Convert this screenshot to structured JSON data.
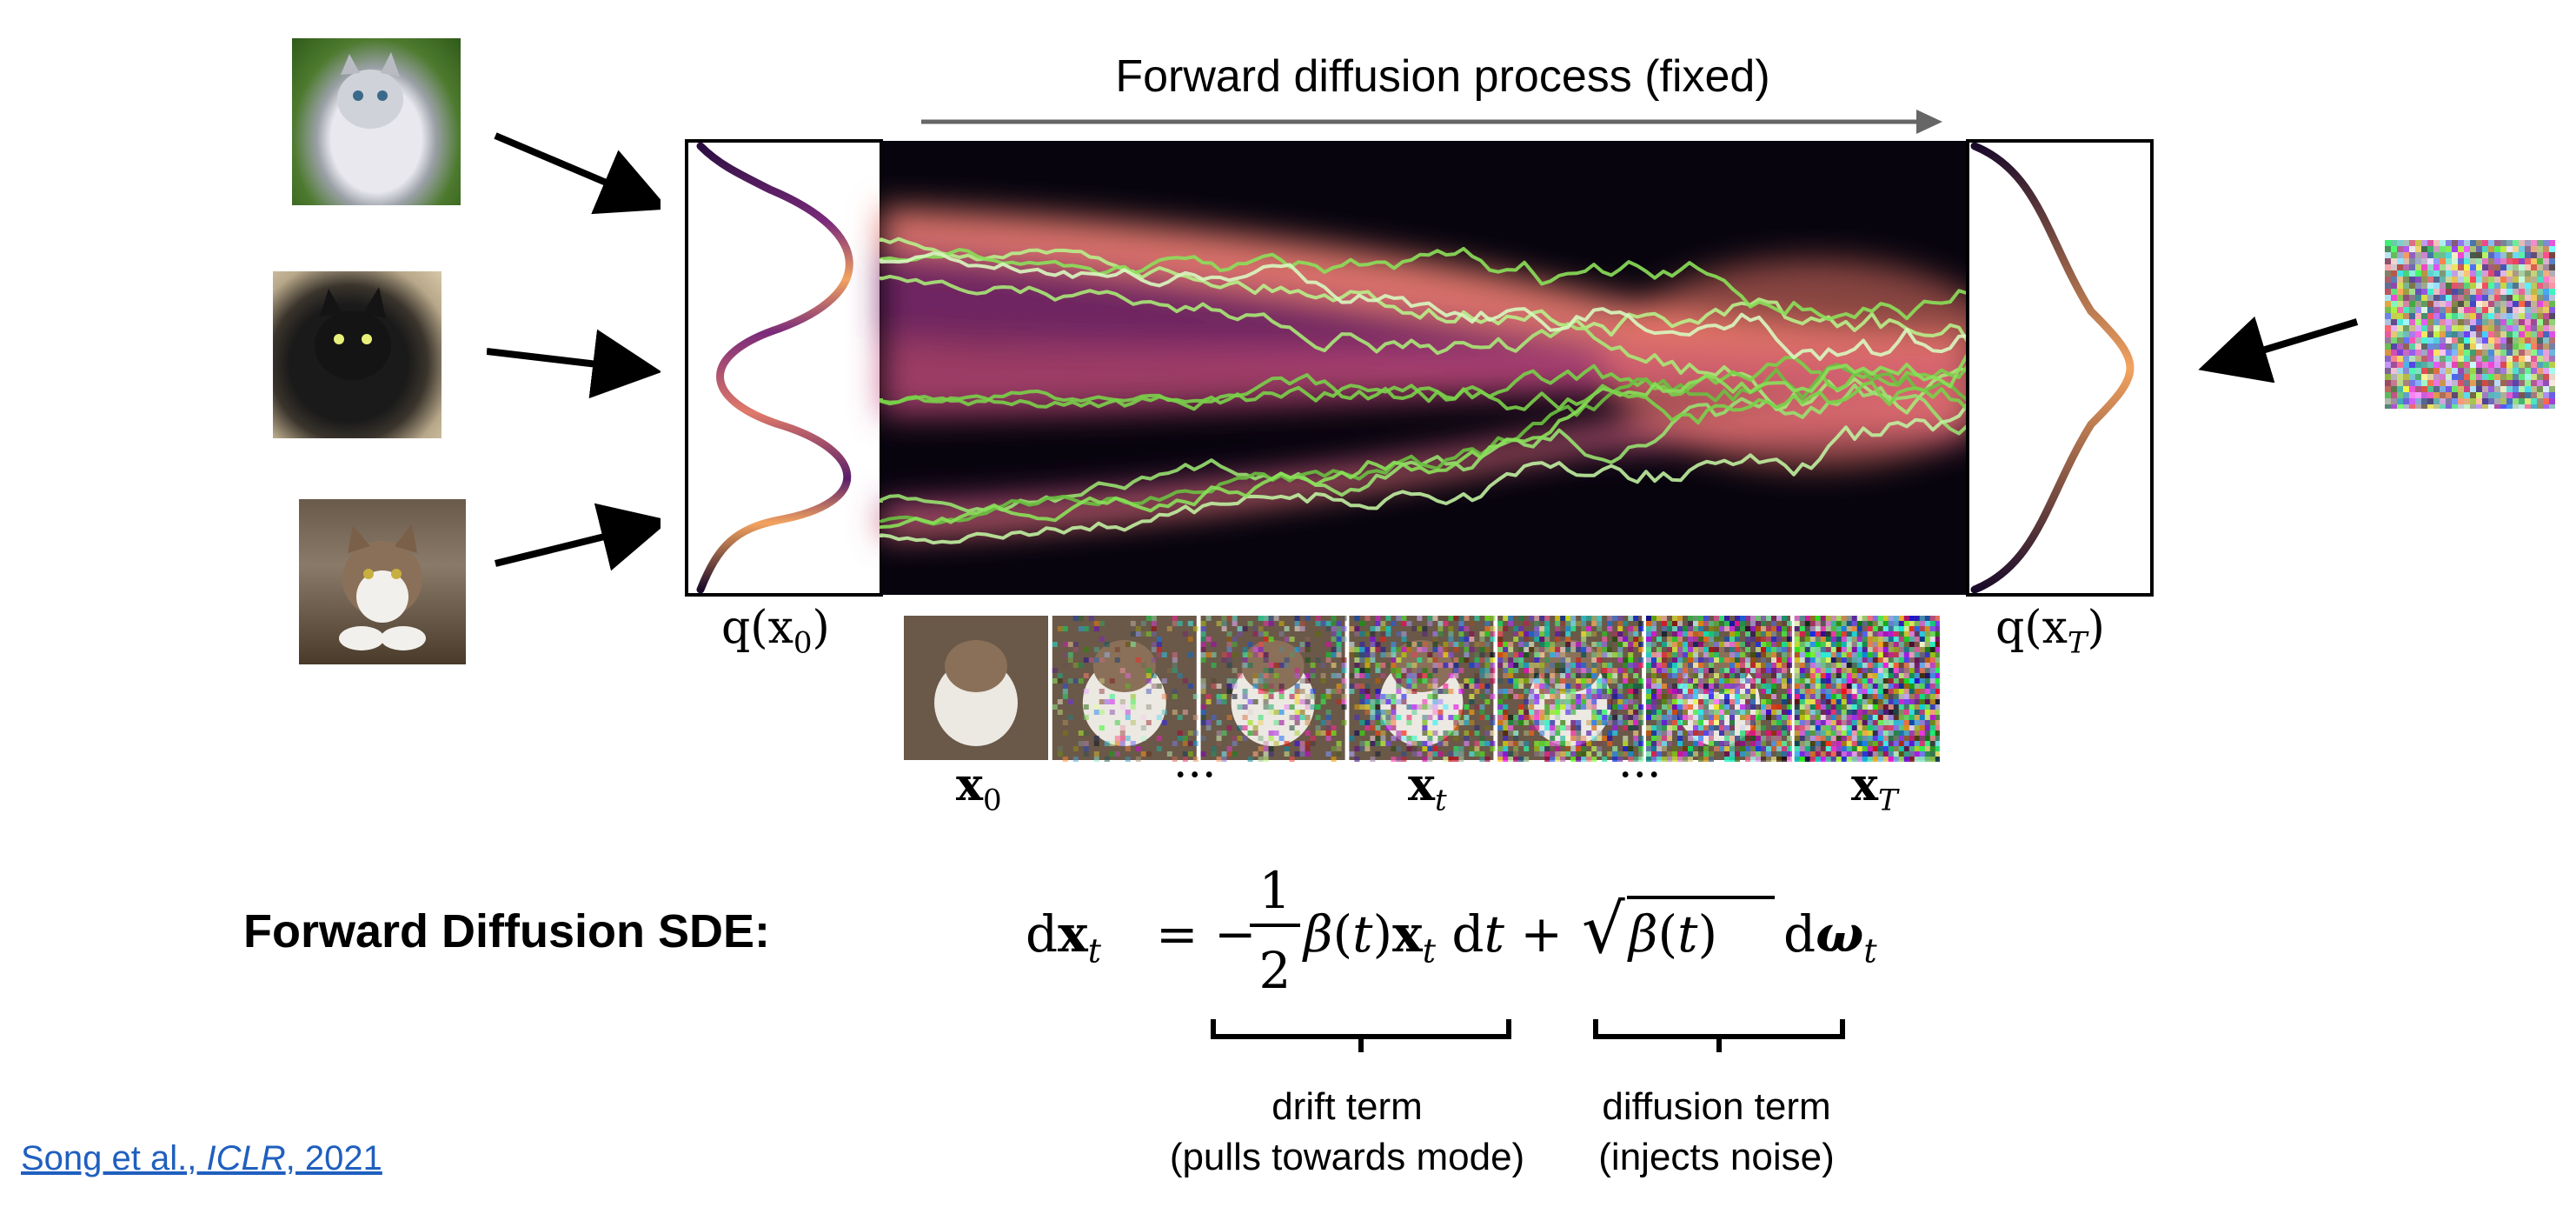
{
  "title": "Forward diffusion process (fixed)",
  "q_x0_label": "q(x₀)",
  "q_xT_label": "q(xₜ)",
  "q_xT_display": "q(x",
  "q_xT_sub": "T",
  "q_x0_display": "q(x",
  "q_x0_sub": "0",
  "timeline": [
    {
      "main": "x",
      "sub": "0"
    },
    {
      "main": "···",
      "sub": ""
    },
    {
      "main": "x",
      "sub": "t"
    },
    {
      "main": "···",
      "sub": ""
    },
    {
      "main": "x",
      "sub": "T"
    }
  ],
  "sde_label": "Forward Diffusion SDE:",
  "equation": {
    "lhs": "dx",
    "lhs_sub": "t",
    "equals": "= −",
    "frac_num": "1",
    "frac_den": "2",
    "drift": "β(t)x",
    "drift_sub": "t",
    "dt": " dt +",
    "sqrt_content": "β(t)",
    "dw": " dω",
    "dw_sub": "t"
  },
  "drift_term": {
    "line1": "drift term",
    "line2": "(pulls towards mode)"
  },
  "diffusion_term": {
    "line1": "diffusion term",
    "line2": "(injects noise)"
  },
  "reference": {
    "authors": "Song et al., ",
    "venue": "ICLR",
    "year": ", 2021"
  },
  "icons": [
    "cat-photo-gray",
    "cat-photo-black",
    "cat-photo-tabby",
    "noise-image"
  ],
  "colors": {
    "arrow": "#666666",
    "trajectory": "#8be05a",
    "heat_low": "#0a0614",
    "heat_high": "#f08070"
  }
}
